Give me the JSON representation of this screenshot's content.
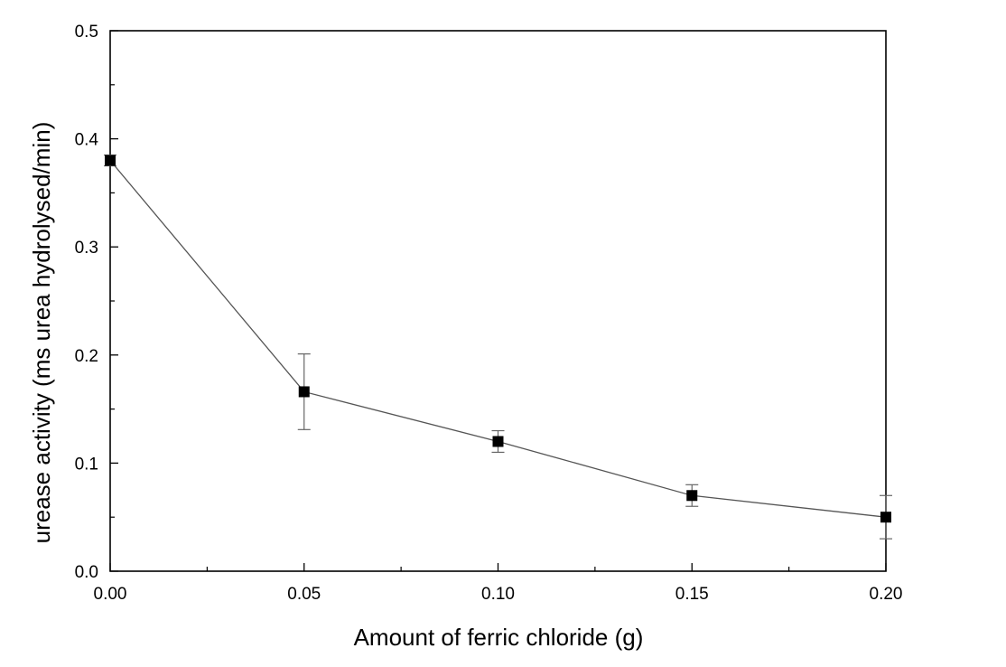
{
  "chart_data": {
    "type": "line",
    "title": "",
    "xlabel": "Amount of ferric chloride (g)",
    "ylabel": "urease activity (ms urea hydrolysed/min)",
    "xlim": [
      0,
      0.2
    ],
    "ylim": [
      0,
      0.5
    ],
    "x_ticks": [
      "0.00",
      "0.05",
      "0.10",
      "0.15",
      "0.20"
    ],
    "y_ticks": [
      "0.0",
      "0.1",
      "0.2",
      "0.3",
      "0.4",
      "0.5"
    ],
    "grid": false,
    "legend": "none",
    "series": [
      {
        "x": [
          0.0,
          0.05,
          0.1,
          0.15,
          0.2
        ],
        "y": [
          0.38,
          0.166,
          0.12,
          0.07,
          0.05
        ],
        "error": [
          0.005,
          0.035,
          0.01,
          0.01,
          0.02
        ],
        "marker": "square",
        "color": "#000000",
        "line_color": "#555555"
      }
    ]
  }
}
